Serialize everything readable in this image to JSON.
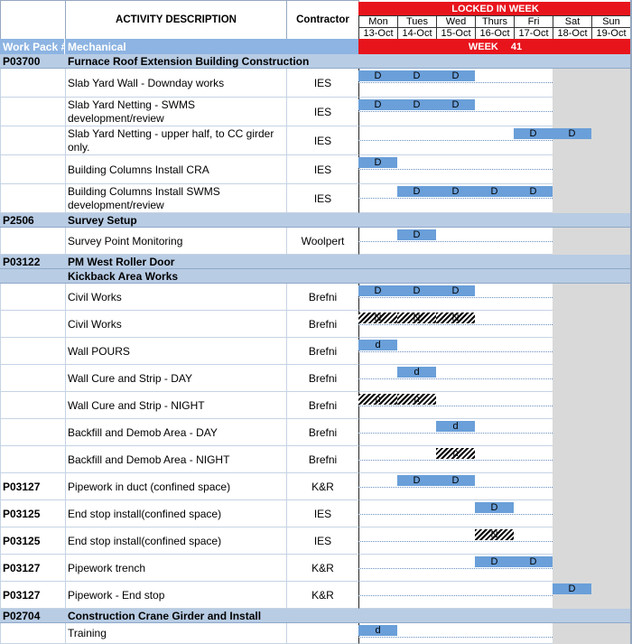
{
  "header": {
    "work_pack": "Work Pack #",
    "activity": "ACTIVITY DESCRIPTION",
    "contractor": "Contractor",
    "locked": "LOCKED IN WEEK",
    "discipline": "Mechanical",
    "week_label": "WEEK",
    "week_number": "41"
  },
  "days": [
    {
      "day": "Mon",
      "date": "13-Oct"
    },
    {
      "day": "Tues",
      "date": "14-Oct"
    },
    {
      "day": "Wed",
      "date": "15-Oct"
    },
    {
      "day": "Thurs",
      "date": "16-Oct"
    },
    {
      "day": "Fri",
      "date": "17-Oct"
    },
    {
      "day": "Sat",
      "date": "18-Oct"
    },
    {
      "day": "Sun",
      "date": "19-Oct"
    }
  ],
  "rows": [
    {
      "kind": "section",
      "code": "P03700",
      "description": "Furnace Roof Extension Building Construction"
    },
    {
      "kind": "task",
      "description": "Slab Yard Wall - Downday works",
      "contractor": "IES",
      "hatched": false,
      "shifts": [
        "D",
        "D",
        "D",
        null,
        null,
        null,
        null
      ]
    },
    {
      "kind": "task",
      "description": "Slab Yard Netting - SWMS development/review",
      "contractor": "IES",
      "hatched": false,
      "shifts": [
        "D",
        "D",
        "D",
        null,
        null,
        null,
        null
      ]
    },
    {
      "kind": "task",
      "description": "Slab Yard Netting - upper half, to CC girder only.",
      "contractor": "IES",
      "hatched": false,
      "shifts": [
        null,
        null,
        null,
        null,
        "D",
        "D",
        null
      ]
    },
    {
      "kind": "task",
      "description": "Building Columns Install CRA",
      "contractor": "IES",
      "hatched": false,
      "shifts": [
        "D",
        null,
        null,
        null,
        null,
        null,
        null
      ]
    },
    {
      "kind": "task",
      "description": "Building Columns Install SWMS development/review",
      "contractor": "IES",
      "hatched": false,
      "shifts": [
        null,
        "D",
        "D",
        "D",
        "D",
        null,
        null
      ]
    },
    {
      "kind": "section",
      "code": "P2506",
      "description": "Survey Setup"
    },
    {
      "kind": "task",
      "description": "Survey Point Monitoring",
      "contractor": "Woolpert",
      "hatched": false,
      "shifts": [
        null,
        "D",
        null,
        null,
        null,
        null,
        null
      ]
    },
    {
      "kind": "section",
      "code": "P03122",
      "description": "PM West Roller Door"
    },
    {
      "kind": "section",
      "description": "Kickback Area Works"
    },
    {
      "kind": "task",
      "description": "Civil Works",
      "contractor": "Brefni",
      "hatched": false,
      "shifts": [
        "D",
        "D",
        "D",
        null,
        null,
        null,
        null
      ]
    },
    {
      "kind": "task",
      "description": "Civil Works",
      "contractor": "Brefni",
      "hatched": true,
      "shifts": [
        "N",
        "N",
        "N",
        null,
        null,
        null,
        null
      ]
    },
    {
      "kind": "task",
      "description": "Wall POURS",
      "contractor": "Brefni",
      "hatched": false,
      "shifts": [
        "d",
        null,
        null,
        null,
        null,
        null,
        null
      ]
    },
    {
      "kind": "task",
      "description": "Wall Cure and Strip - DAY",
      "contractor": "Brefni",
      "hatched": false,
      "shifts": [
        null,
        "d",
        null,
        null,
        null,
        null,
        null
      ]
    },
    {
      "kind": "task",
      "description": "Wall Cure and Strip - NIGHT",
      "contractor": "Brefni",
      "hatched": true,
      "shifts": [
        "n",
        "n",
        null,
        null,
        null,
        null,
        null
      ]
    },
    {
      "kind": "task",
      "description": "Backfill and Demob Area - DAY",
      "contractor": "Brefni",
      "hatched": false,
      "shifts": [
        null,
        null,
        "d",
        null,
        null,
        null,
        null
      ]
    },
    {
      "kind": "task",
      "description": "Backfill and Demob Area - NIGHT",
      "contractor": "Brefni",
      "hatched": true,
      "shifts": [
        null,
        null,
        "n",
        null,
        null,
        null,
        null
      ]
    },
    {
      "kind": "task",
      "code": "P03127",
      "description": "Pipework in duct (confined space)",
      "contractor": "K&R",
      "hatched": false,
      "shifts": [
        null,
        "D",
        "D",
        null,
        null,
        null,
        null
      ]
    },
    {
      "kind": "task",
      "code": "P03125",
      "description": "End stop install(confined space)",
      "contractor": "IES",
      "hatched": false,
      "shifts": [
        null,
        null,
        null,
        "D",
        null,
        null,
        null
      ]
    },
    {
      "kind": "task",
      "code": "P03125",
      "description": "End stop install(confined space)",
      "contractor": "IES",
      "hatched": true,
      "shifts": [
        null,
        null,
        null,
        "N",
        null,
        null,
        null
      ]
    },
    {
      "kind": "task",
      "code": "P03127",
      "description": "Pipework trench",
      "contractor": "K&R",
      "hatched": false,
      "shifts": [
        null,
        null,
        null,
        "D",
        "D",
        null,
        null
      ]
    },
    {
      "kind": "task",
      "code": "P03127",
      "description": "Pipework - End stop",
      "contractor": "K&R",
      "hatched": false,
      "shifts": [
        null,
        null,
        null,
        null,
        null,
        "D",
        null
      ]
    },
    {
      "kind": "section",
      "code": "P02704",
      "description": "Construction Crane Girder and Install"
    },
    {
      "kind": "task",
      "description": "Training",
      "hatched": false,
      "shifts": [
        "d",
        null,
        null,
        null,
        null,
        null,
        null
      ]
    }
  ]
}
